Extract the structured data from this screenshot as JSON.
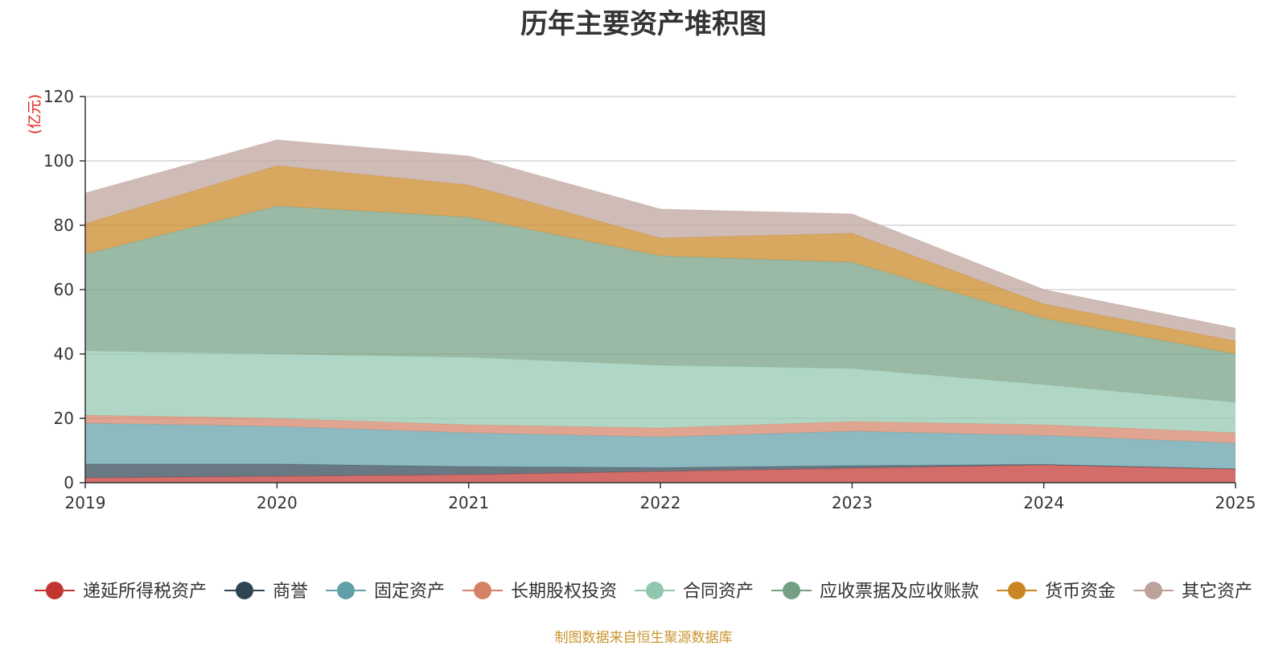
{
  "chart_data": {
    "type": "area",
    "stacked": true,
    "title": "历年主要资产堆积图",
    "y_unit": "(亿元)",
    "x": [
      "2019",
      "2020",
      "2021",
      "2022",
      "2023",
      "2024",
      "2025"
    ],
    "ylim": [
      0,
      120
    ],
    "yticks": [
      0,
      20,
      40,
      60,
      80,
      100,
      120
    ],
    "grid": true,
    "legend_position": "bottom",
    "series": [
      {
        "name": "递延所得税资产",
        "color": "#c23531",
        "values": [
          1.5,
          2.0,
          2.5,
          3.5,
          4.5,
          5.5,
          4.2
        ]
      },
      {
        "name": "商誉",
        "color": "#2f4554",
        "values": [
          4.3,
          3.8,
          2.5,
          1.2,
          0.8,
          0.2,
          0.1
        ]
      },
      {
        "name": "固定资产",
        "color": "#61a0a8",
        "values": [
          12.7,
          11.7,
          10.5,
          9.5,
          10.7,
          9.0,
          8.0
        ]
      },
      {
        "name": "长期股权投资",
        "color": "#d48265",
        "values": [
          2.5,
          2.5,
          2.5,
          2.8,
          3.0,
          3.3,
          3.2
        ]
      },
      {
        "name": "合同资产",
        "color": "#91c7ae",
        "values": [
          20.0,
          20.0,
          21.0,
          19.5,
          16.5,
          12.5,
          9.5
        ]
      },
      {
        "name": "应收票据及应收账款",
        "color": "#749f83",
        "values": [
          30.0,
          46.0,
          43.5,
          34.0,
          33.0,
          20.5,
          15.0
        ]
      },
      {
        "name": "货币资金",
        "color": "#ca8622",
        "values": [
          9.5,
          12.5,
          10.0,
          5.5,
          9.0,
          4.5,
          4.0
        ]
      },
      {
        "name": "其它资产",
        "color": "#bda29a",
        "values": [
          9.5,
          8.0,
          9.0,
          9.0,
          6.0,
          4.5,
          4.0
        ]
      }
    ]
  },
  "footer": {
    "source": "制图数据来自恒生聚源数据库"
  }
}
